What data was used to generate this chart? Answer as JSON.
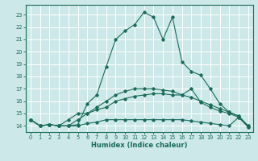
{
  "xlabel": "Humidex (Indice chaleur)",
  "background_color": "#cce8e8",
  "grid_color": "#ffffff",
  "line_color": "#1a6b5a",
  "xlim": [
    -0.5,
    23.5
  ],
  "ylim": [
    13.5,
    23.8
  ],
  "yticks": [
    14,
    15,
    16,
    17,
    18,
    19,
    20,
    21,
    22,
    23
  ],
  "xticks": [
    0,
    1,
    2,
    3,
    4,
    5,
    6,
    7,
    8,
    9,
    10,
    11,
    12,
    13,
    14,
    15,
    16,
    17,
    18,
    19,
    20,
    21,
    22,
    23
  ],
  "series": [
    {
      "x": [
        0,
        1,
        2,
        3,
        4,
        5,
        6,
        7,
        8,
        9,
        10,
        11,
        12,
        13,
        14,
        15,
        16,
        17,
        18,
        19,
        20,
        21,
        22,
        23
      ],
      "y": [
        14.5,
        14.0,
        14.1,
        14.0,
        14.0,
        14.1,
        15.8,
        16.5,
        18.8,
        21.0,
        21.7,
        22.2,
        23.2,
        22.8,
        21.0,
        22.8,
        19.2,
        18.4,
        18.1,
        17.0,
        15.8,
        15.1,
        14.8,
        13.9
      ]
    },
    {
      "x": [
        0,
        1,
        2,
        3,
        4,
        5,
        6,
        7,
        8,
        9,
        10,
        11,
        12,
        13,
        14,
        15,
        16,
        17,
        18,
        19,
        20,
        21,
        22,
        23
      ],
      "y": [
        14.5,
        14.0,
        14.1,
        14.0,
        14.0,
        14.5,
        15.0,
        15.3,
        15.5,
        16.0,
        16.2,
        16.4,
        16.5,
        16.6,
        16.6,
        16.5,
        16.5,
        17.0,
        15.9,
        15.5,
        15.2,
        15.0,
        14.7,
        14.0
      ]
    },
    {
      "x": [
        0,
        1,
        2,
        3,
        4,
        5,
        6,
        7,
        8,
        9,
        10,
        11,
        12,
        13,
        14,
        15,
        16,
        17,
        18,
        19,
        20,
        21,
        22,
        23
      ],
      "y": [
        14.5,
        14.0,
        14.1,
        14.0,
        14.5,
        15.0,
        15.0,
        15.5,
        16.0,
        16.5,
        16.8,
        17.0,
        17.0,
        17.0,
        16.9,
        16.8,
        16.5,
        16.3,
        16.0,
        15.7,
        15.4,
        15.1,
        14.8,
        14.0
      ]
    },
    {
      "x": [
        0,
        1,
        2,
        3,
        4,
        5,
        6,
        7,
        8,
        9,
        10,
        11,
        12,
        13,
        14,
        15,
        16,
        17,
        18,
        19,
        20,
        21,
        22,
        23
      ],
      "y": [
        14.5,
        14.0,
        14.1,
        14.0,
        14.0,
        14.0,
        14.2,
        14.3,
        14.5,
        14.5,
        14.5,
        14.5,
        14.5,
        14.5,
        14.5,
        14.5,
        14.5,
        14.4,
        14.3,
        14.2,
        14.1,
        14.0,
        14.7,
        13.9
      ]
    }
  ]
}
